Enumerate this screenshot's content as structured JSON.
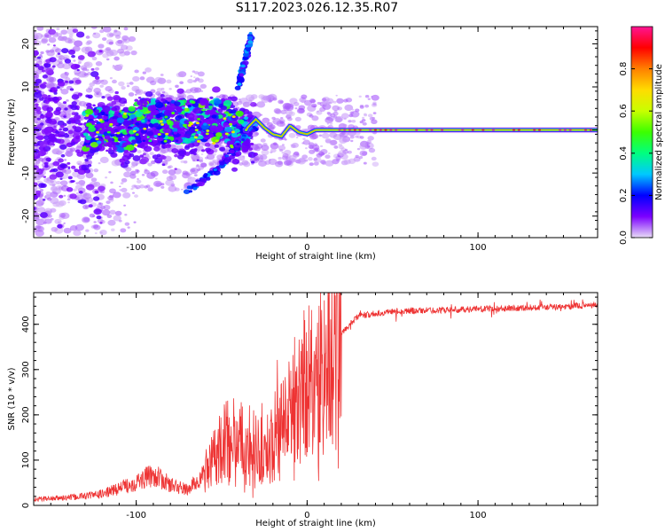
{
  "figure": {
    "title": "S117.2023.026.12.35.R07"
  },
  "chart_data": [
    {
      "type": "heatmap",
      "xlabel": "Height of straight line (km)",
      "ylabel": "Frequency (Hz)",
      "xlim": [
        -160,
        170
      ],
      "ylim": [
        -25,
        24
      ],
      "x_ticks": [
        -100,
        0,
        100
      ],
      "y_ticks": [
        -20,
        -10,
        0,
        10,
        20
      ],
      "colorbar": {
        "label": "Normalized spectral amplitude",
        "ticks": [
          0.0,
          0.2,
          0.4,
          0.6,
          0.8
        ],
        "range": [
          0,
          1
        ],
        "colormap": [
          "#e8dcf6",
          "#7b00ff",
          "#0000ff",
          "#00c8ff",
          "#00ff7f",
          "#3cff00",
          "#c8ff00",
          "#ffdc00",
          "#ff8000",
          "#ff0000",
          "#ff1493"
        ]
      },
      "main_ridge": {
        "description_points": [
          [
            -35,
            0.5
          ],
          [
            -30,
            2.5
          ],
          [
            -25,
            0.5
          ],
          [
            -20,
            -1
          ],
          [
            -15,
            -1.5
          ],
          [
            -10,
            1
          ],
          [
            -5,
            -0.5
          ],
          [
            0,
            -1
          ],
          [
            5,
            0
          ],
          [
            170,
            0
          ]
        ],
        "strong_from_x": 0
      },
      "branches": [
        [
          [
            -70,
            -14
          ],
          [
            -55,
            -10
          ],
          [
            -45,
            -6
          ],
          [
            -38,
            -2
          ],
          [
            -30,
            1
          ]
        ],
        [
          [
            -40,
            10
          ],
          [
            -38,
            14
          ],
          [
            -35,
            18
          ],
          [
            -33,
            22
          ]
        ]
      ]
    },
    {
      "type": "line",
      "xlabel": "Height of straight line (km)",
      "ylabel": "SNR (10 * v/v)",
      "xlim": [
        -160,
        170
      ],
      "ylim": [
        0,
        470
      ],
      "x_ticks": [
        -100,
        0,
        100
      ],
      "y_ticks": [
        0,
        100,
        200,
        300,
        400
      ],
      "color": "#ee3333",
      "envelope_points": [
        [
          -160,
          12
        ],
        [
          -140,
          15
        ],
        [
          -120,
          22
        ],
        [
          -100,
          45
        ],
        [
          -90,
          60
        ],
        [
          -80,
          40
        ],
        [
          -70,
          30
        ],
        [
          -60,
          60
        ],
        [
          -50,
          140
        ],
        [
          -40,
          150
        ],
        [
          -30,
          100
        ],
        [
          -22,
          130
        ],
        [
          -15,
          180
        ],
        [
          -5,
          250
        ],
        [
          5,
          290
        ],
        [
          15,
          330
        ],
        [
          20,
          380
        ],
        [
          30,
          420
        ],
        [
          50,
          430
        ],
        [
          100,
          435
        ],
        [
          150,
          440
        ],
        [
          170,
          445
        ]
      ]
    }
  ]
}
